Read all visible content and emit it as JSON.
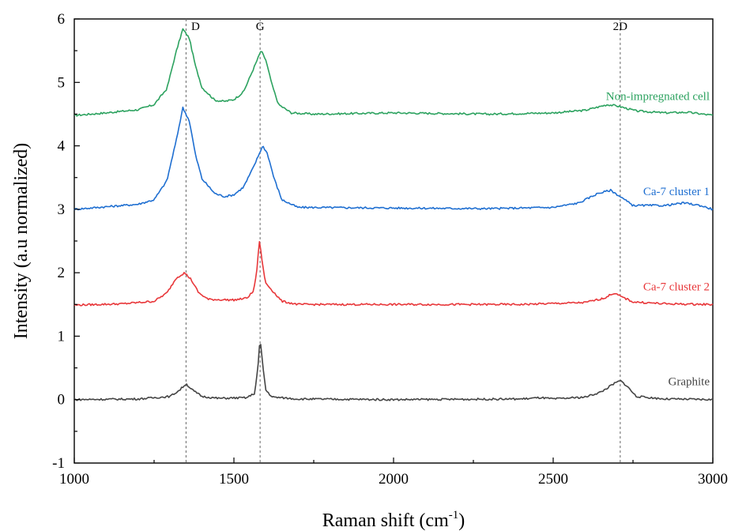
{
  "chart_data": {
    "type": "line",
    "title": "",
    "xlabel": "Raman shift",
    "xlabel_unit_base": "(cm",
    "xlabel_unit_sup": "-1",
    "xlabel_unit_end": ")",
    "ylabel": "Intensity (a.u normalized)",
    "xlim": [
      1000,
      3000
    ],
    "ylim": [
      -1,
      6
    ],
    "xticks": [
      1000,
      1500,
      2000,
      2500,
      3000
    ],
    "yticks": [
      -1,
      0,
      1,
      2,
      3,
      4,
      5,
      6
    ],
    "grid": false,
    "reference_lines": [
      {
        "label": "D",
        "x": 1350
      },
      {
        "label": "G",
        "x": 1582
      },
      {
        "label": "2D",
        "x": 2710
      }
    ],
    "series": [
      {
        "name": "Non-impregnated cell",
        "color": "#2ca25f",
        "baseline": 4.5,
        "points": [
          [
            1000,
            4.48
          ],
          [
            1100,
            4.52
          ],
          [
            1200,
            4.57
          ],
          [
            1250,
            4.65
          ],
          [
            1290,
            4.9
          ],
          [
            1320,
            5.5
          ],
          [
            1340,
            5.84
          ],
          [
            1360,
            5.7
          ],
          [
            1380,
            5.25
          ],
          [
            1400,
            4.92
          ],
          [
            1440,
            4.72
          ],
          [
            1470,
            4.7
          ],
          [
            1500,
            4.73
          ],
          [
            1530,
            4.85
          ],
          [
            1560,
            5.2
          ],
          [
            1585,
            5.5
          ],
          [
            1600,
            5.35
          ],
          [
            1620,
            4.95
          ],
          [
            1640,
            4.65
          ],
          [
            1680,
            4.52
          ],
          [
            1750,
            4.5
          ],
          [
            2000,
            4.52
          ],
          [
            2300,
            4.5
          ],
          [
            2500,
            4.52
          ],
          [
            2600,
            4.56
          ],
          [
            2670,
            4.65
          ],
          [
            2700,
            4.63
          ],
          [
            2760,
            4.55
          ],
          [
            2850,
            4.52
          ],
          [
            2920,
            4.53
          ],
          [
            3000,
            4.48
          ]
        ]
      },
      {
        "name": "Ca-7 cluster 1",
        "color": "#1f6fd1",
        "baseline": 3.0,
        "points": [
          [
            1000,
            3.0
          ],
          [
            1100,
            3.04
          ],
          [
            1200,
            3.08
          ],
          [
            1250,
            3.15
          ],
          [
            1290,
            3.45
          ],
          [
            1320,
            4.1
          ],
          [
            1340,
            4.6
          ],
          [
            1360,
            4.4
          ],
          [
            1380,
            3.85
          ],
          [
            1400,
            3.48
          ],
          [
            1440,
            3.25
          ],
          [
            1470,
            3.2
          ],
          [
            1500,
            3.23
          ],
          [
            1530,
            3.35
          ],
          [
            1560,
            3.65
          ],
          [
            1590,
            4.0
          ],
          [
            1605,
            3.88
          ],
          [
            1625,
            3.5
          ],
          [
            1650,
            3.15
          ],
          [
            1700,
            3.03
          ],
          [
            2000,
            3.02
          ],
          [
            2300,
            3.01
          ],
          [
            2500,
            3.03
          ],
          [
            2580,
            3.1
          ],
          [
            2640,
            3.25
          ],
          [
            2680,
            3.3
          ],
          [
            2710,
            3.2
          ],
          [
            2750,
            3.06
          ],
          [
            2850,
            3.06
          ],
          [
            2910,
            3.1
          ],
          [
            2960,
            3.06
          ],
          [
            3000,
            3.0
          ]
        ]
      },
      {
        "name": "Ca-7 cluster 2",
        "color": "#e8373a",
        "baseline": 1.5,
        "points": [
          [
            1000,
            1.49
          ],
          [
            1150,
            1.51
          ],
          [
            1250,
            1.55
          ],
          [
            1290,
            1.68
          ],
          [
            1320,
            1.92
          ],
          [
            1345,
            2.0
          ],
          [
            1365,
            1.9
          ],
          [
            1390,
            1.68
          ],
          [
            1420,
            1.58
          ],
          [
            1500,
            1.57
          ],
          [
            1540,
            1.6
          ],
          [
            1560,
            1.7
          ],
          [
            1570,
            1.95
          ],
          [
            1580,
            2.5
          ],
          [
            1588,
            2.2
          ],
          [
            1598,
            1.85
          ],
          [
            1620,
            1.72
          ],
          [
            1650,
            1.55
          ],
          [
            1700,
            1.5
          ],
          [
            2000,
            1.5
          ],
          [
            2400,
            1.5
          ],
          [
            2600,
            1.53
          ],
          [
            2660,
            1.6
          ],
          [
            2690,
            1.68
          ],
          [
            2710,
            1.63
          ],
          [
            2750,
            1.54
          ],
          [
            2850,
            1.51
          ],
          [
            3000,
            1.5
          ]
        ]
      },
      {
        "name": "Graphite",
        "color": "#444444",
        "baseline": 0.0,
        "points": [
          [
            1000,
            0.0
          ],
          [
            1200,
            0.01
          ],
          [
            1300,
            0.05
          ],
          [
            1330,
            0.15
          ],
          [
            1350,
            0.25
          ],
          [
            1370,
            0.15
          ],
          [
            1400,
            0.05
          ],
          [
            1450,
            0.02
          ],
          [
            1540,
            0.03
          ],
          [
            1565,
            0.1
          ],
          [
            1575,
            0.5
          ],
          [
            1582,
            0.97
          ],
          [
            1590,
            0.55
          ],
          [
            1600,
            0.15
          ],
          [
            1620,
            0.04
          ],
          [
            1700,
            0.01
          ],
          [
            2000,
            0.0
          ],
          [
            2400,
            0.01
          ],
          [
            2460,
            0.03
          ],
          [
            2500,
            0.01
          ],
          [
            2600,
            0.04
          ],
          [
            2650,
            0.12
          ],
          [
            2690,
            0.25
          ],
          [
            2710,
            0.3
          ],
          [
            2730,
            0.22
          ],
          [
            2760,
            0.05
          ],
          [
            2850,
            0.01
          ],
          [
            3000,
            0.0
          ]
        ]
      }
    ]
  }
}
